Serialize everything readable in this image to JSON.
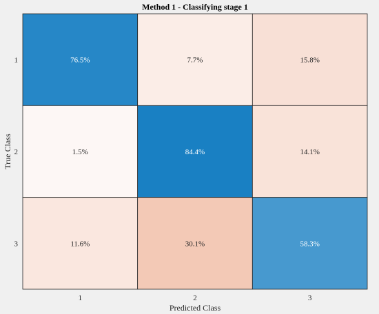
{
  "chart_data": {
    "type": "heatmap",
    "title": "Method 1 - Classifying stage 1",
    "xlabel": "Predicted Class",
    "ylabel": "True Class",
    "x_categories": [
      "1",
      "2",
      "3"
    ],
    "y_categories": [
      "1",
      "2",
      "3"
    ],
    "values": [
      [
        76.5,
        7.7,
        15.8
      ],
      [
        1.5,
        84.4,
        14.1
      ],
      [
        11.6,
        30.1,
        58.3
      ]
    ],
    "cell_labels": [
      [
        "76.5%",
        "7.7%",
        "15.8%"
      ],
      [
        "1.5%",
        "84.4%",
        "14.1%"
      ],
      [
        "11.6%",
        "30.1%",
        "58.3%"
      ]
    ],
    "colors": {
      "diagonal_dark": "#0072bd",
      "diagonal_light": "#ffffff",
      "offdiag_dark": "#d95319",
      "offdiag_light": "#ffffff",
      "background": "#f0f0f0",
      "grid_line": "#262626"
    },
    "grid": true,
    "legend": "none"
  }
}
